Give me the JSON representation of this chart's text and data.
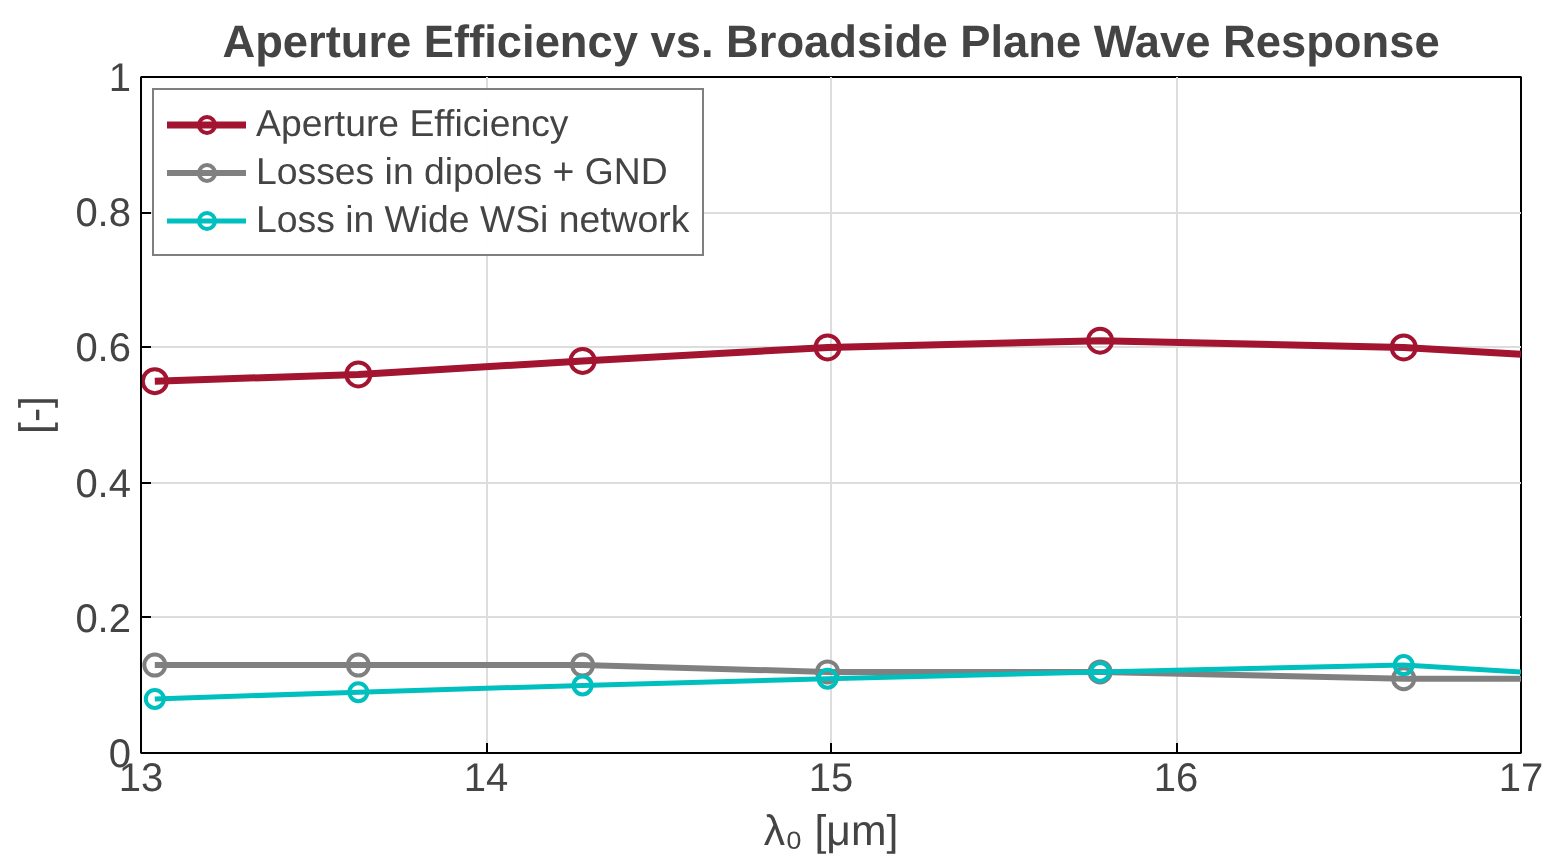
{
  "chart_data": {
    "type": "line",
    "title": "Aperture Efficiency vs. Broadside Plane Wave Response",
    "xlabel": "λ₀ [μm]",
    "ylabel": "[-]",
    "x": [
      13.04,
      13.63,
      14.28,
      14.99,
      15.78,
      16.66,
      17
    ],
    "xlim": [
      13,
      17
    ],
    "xticks": [
      13,
      14,
      15,
      16,
      17
    ],
    "ylim": [
      0,
      1
    ],
    "yticks": [
      0,
      0.2,
      0.4,
      0.6,
      0.8,
      1
    ],
    "series": [
      {
        "name": "Aperture Efficiency",
        "color": "#a2142f",
        "values": [
          0.55,
          0.56,
          0.58,
          0.6,
          0.61,
          0.6,
          0.59
        ]
      },
      {
        "name": "Losses in dipoles + GND",
        "color": "#808080",
        "values": [
          0.13,
          0.13,
          0.13,
          0.12,
          0.12,
          0.11,
          0.11
        ]
      },
      {
        "name": "Loss in Wide WSi network",
        "color": "#00bfbf",
        "values": [
          0.08,
          0.09,
          0.1,
          0.11,
          0.12,
          0.13,
          0.12
        ]
      }
    ],
    "grid": true,
    "legend": "top left",
    "marker": "circle",
    "line_style": "solid"
  }
}
